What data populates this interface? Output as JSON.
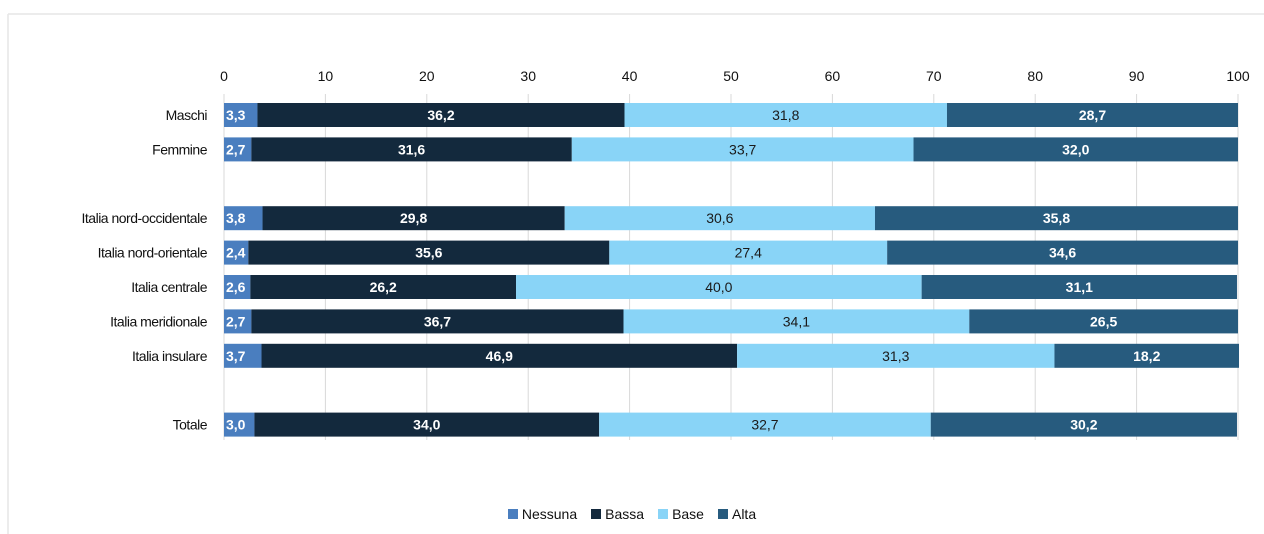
{
  "chart_data": {
    "type": "bar",
    "orientation": "horizontal",
    "stacked": true,
    "categories": [
      "Maschi",
      "Femmine",
      "",
      "Italia nord-occidentale",
      "Italia nord-orientale",
      "Italia centrale",
      "Italia meridionale",
      "Italia insulare",
      "",
      "Totale"
    ],
    "series": [
      {
        "name": "Nessuna",
        "color": "#4a7ebf",
        "values": [
          3.3,
          2.7,
          null,
          3.8,
          2.4,
          2.6,
          2.7,
          3.7,
          null,
          3.0
        ],
        "labels": [
          "3,3",
          "2,7",
          "",
          "3,8",
          "2,4",
          "2,6",
          "2,7",
          "3,7",
          "",
          "3,0"
        ]
      },
      {
        "name": "Bassa",
        "color": "#13293d",
        "values": [
          36.2,
          31.6,
          null,
          29.8,
          35.6,
          26.2,
          36.7,
          46.9,
          null,
          34.0
        ],
        "labels": [
          "36,2",
          "31,6",
          "",
          "29,8",
          "35,6",
          "26,2",
          "36,7",
          "46,9",
          "",
          "34,0"
        ]
      },
      {
        "name": "Base",
        "color": "#89d4f7",
        "values": [
          31.8,
          33.7,
          null,
          30.6,
          27.4,
          40.0,
          34.1,
          31.3,
          null,
          32.7
        ],
        "labels": [
          "31,8",
          "33,7",
          "",
          "30,6",
          "27,4",
          "40,0",
          "34,1",
          "31,3",
          "",
          "32,7"
        ]
      },
      {
        "name": "Alta",
        "color": "#275b7e",
        "values": [
          28.7,
          32.0,
          null,
          35.8,
          34.6,
          31.1,
          26.5,
          18.2,
          null,
          30.2
        ],
        "labels": [
          "28,7",
          "32,0",
          "",
          "35,8",
          "34,6",
          "31,1",
          "26,5",
          "18,2",
          "",
          "30,2"
        ]
      }
    ],
    "xlim": [
      0,
      100
    ],
    "xticks": [
      "0",
      "10",
      "20",
      "30",
      "40",
      "50",
      "60",
      "70",
      "80",
      "90",
      "100"
    ],
    "title": "",
    "xlabel": "",
    "ylabel": "",
    "grid": true,
    "legend_position": "bottom"
  }
}
